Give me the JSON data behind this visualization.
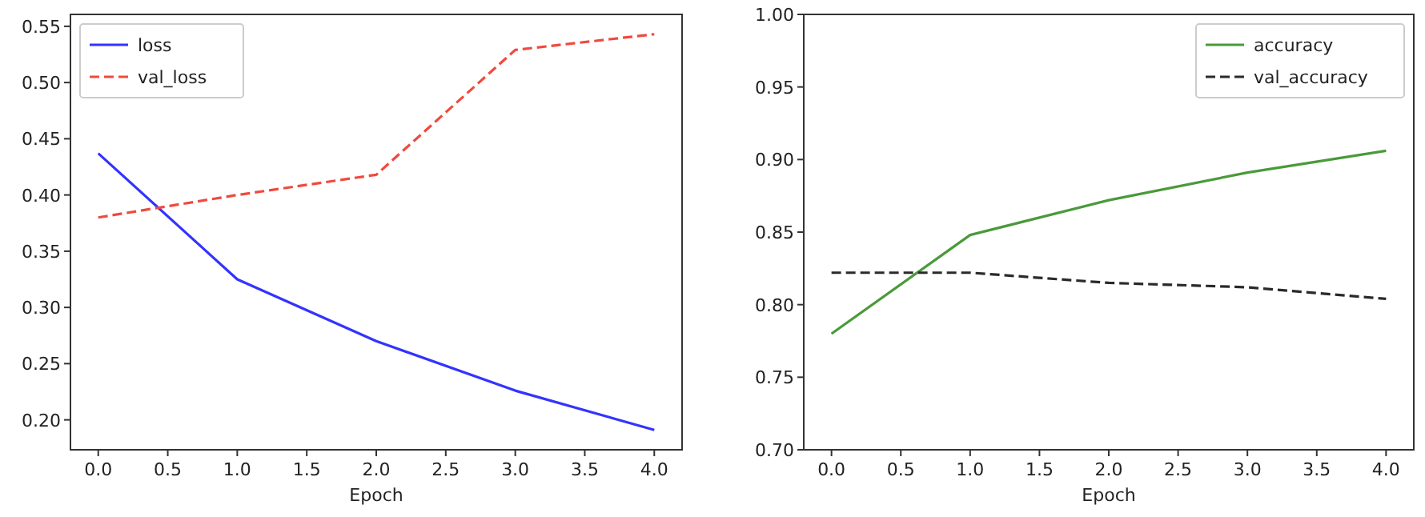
{
  "chart_data": [
    {
      "type": "line",
      "xlabel": "Epoch",
      "x": [
        0,
        1,
        2,
        3,
        4
      ],
      "xlim": [
        -0.2,
        4.2
      ],
      "xticks": [
        {
          "value": 0,
          "label": "0.0"
        },
        {
          "value": 0.5,
          "label": "0.5"
        },
        {
          "value": 1,
          "label": "1.0"
        },
        {
          "value": 1.5,
          "label": "1.5"
        },
        {
          "value": 2,
          "label": "2.0"
        },
        {
          "value": 2.5,
          "label": "2.5"
        },
        {
          "value": 3,
          "label": "3.0"
        },
        {
          "value": 3.5,
          "label": "3.5"
        },
        {
          "value": 4,
          "label": "4.0"
        }
      ],
      "ylim": [
        0.1734,
        0.5606
      ],
      "yticks": [
        {
          "value": 0.2,
          "label": "0.20"
        },
        {
          "value": 0.25,
          "label": "0.25"
        },
        {
          "value": 0.3,
          "label": "0.30"
        },
        {
          "value": 0.35,
          "label": "0.35"
        },
        {
          "value": 0.4,
          "label": "0.40"
        },
        {
          "value": 0.45,
          "label": "0.45"
        },
        {
          "value": 0.5,
          "label": "0.50"
        },
        {
          "value": 0.55,
          "label": "0.55"
        }
      ],
      "legend": "top left",
      "grid": false,
      "series": [
        {
          "name": "loss",
          "color": "#3333ff",
          "line_style": "solid",
          "values": [
            0.437,
            0.325,
            0.27,
            0.226,
            0.191
          ]
        },
        {
          "name": "val_loss",
          "color": "#f04a3e",
          "line_style": "dashed",
          "values": [
            0.38,
            0.4,
            0.418,
            0.529,
            0.543
          ]
        }
      ]
    },
    {
      "type": "line",
      "xlabel": "Epoch",
      "x": [
        0,
        1,
        2,
        3,
        4
      ],
      "xlim": [
        -0.2,
        4.2
      ],
      "xticks": [
        {
          "value": 0,
          "label": "0.0"
        },
        {
          "value": 0.5,
          "label": "0.5"
        },
        {
          "value": 1,
          "label": "1.0"
        },
        {
          "value": 1.5,
          "label": "1.5"
        },
        {
          "value": 2,
          "label": "2.0"
        },
        {
          "value": 2.5,
          "label": "2.5"
        },
        {
          "value": 3,
          "label": "3.0"
        },
        {
          "value": 3.5,
          "label": "3.5"
        },
        {
          "value": 4,
          "label": "4.0"
        }
      ],
      "ylim": [
        0.7,
        1.0
      ],
      "yticks": [
        {
          "value": 0.7,
          "label": "0.70"
        },
        {
          "value": 0.75,
          "label": "0.75"
        },
        {
          "value": 0.8,
          "label": "0.80"
        },
        {
          "value": 0.85,
          "label": "0.85"
        },
        {
          "value": 0.9,
          "label": "0.90"
        },
        {
          "value": 0.95,
          "label": "0.95"
        },
        {
          "value": 1.0,
          "label": "1.00"
        }
      ],
      "legend": "top right",
      "grid": false,
      "series": [
        {
          "name": "accuracy",
          "color": "#4a9a3a",
          "line_style": "solid",
          "values": [
            0.78,
            0.848,
            0.872,
            0.891,
            0.906
          ]
        },
        {
          "name": "val_accuracy",
          "color": "#2a2a2a",
          "line_style": "dashed",
          "values": [
            0.822,
            0.822,
            0.815,
            0.812,
            0.804
          ]
        }
      ]
    }
  ]
}
